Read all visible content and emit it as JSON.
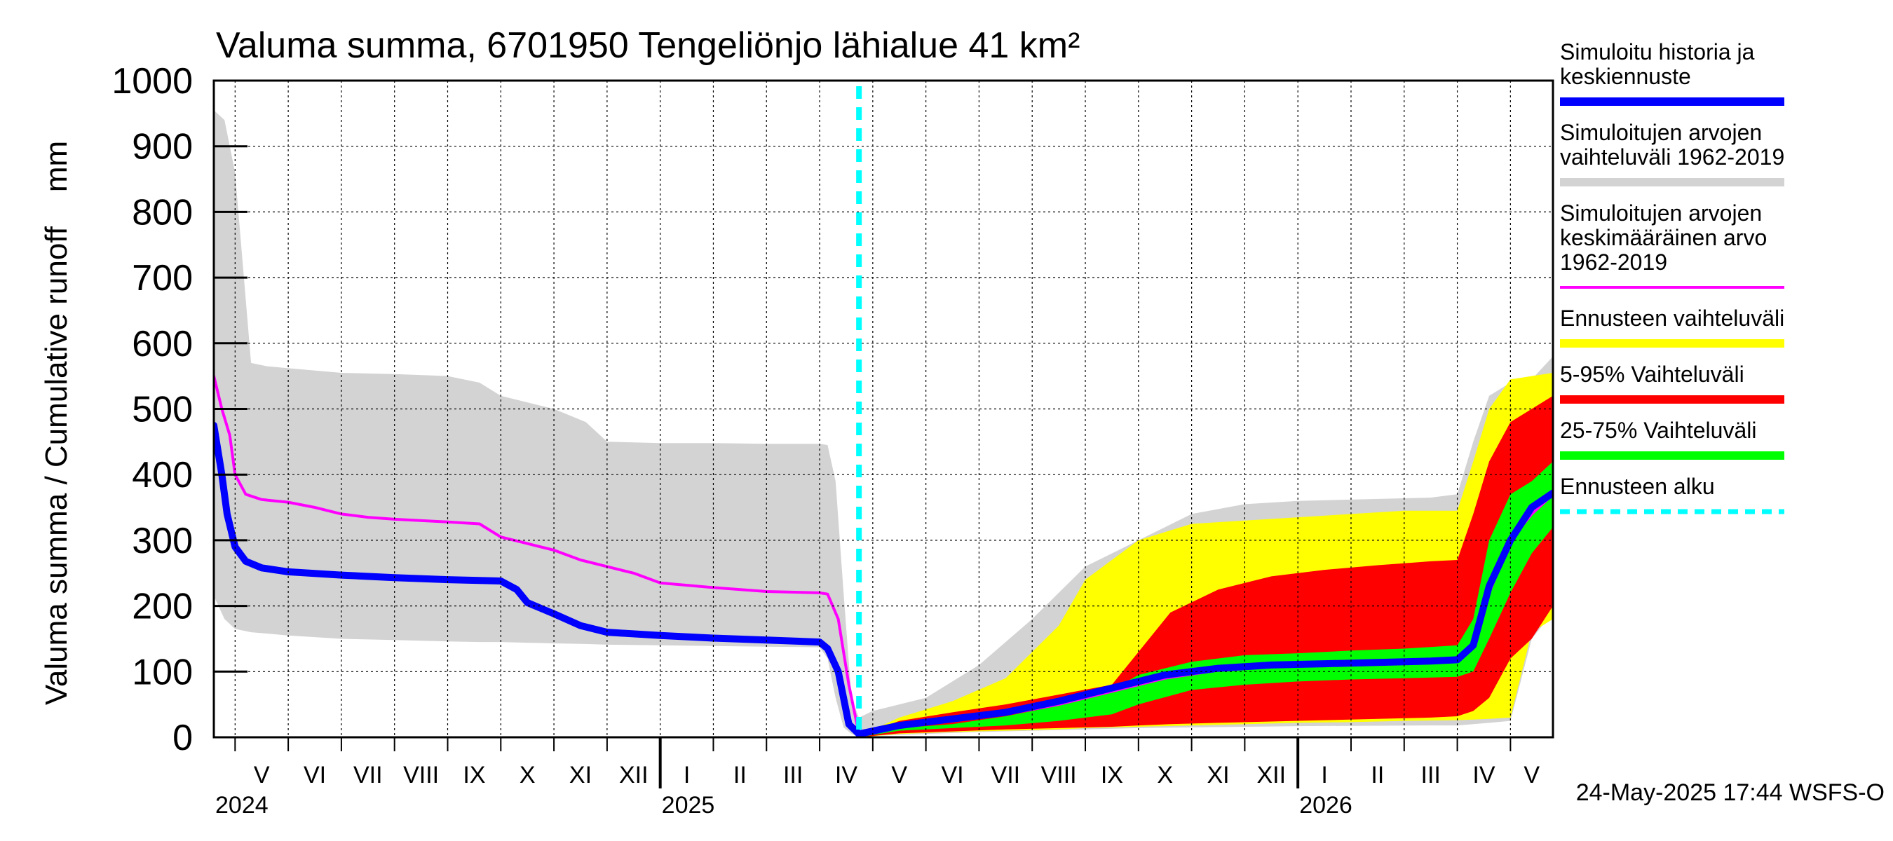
{
  "chart_data": {
    "type": "area",
    "title": "Valuma summa, 6701950 Tengeliönjo lähialue 41 km²",
    "ylabel": "Valuma summa / Cumulative runoff    mm",
    "ylim": [
      0,
      1000
    ],
    "yticks": [
      "0",
      "100",
      "200",
      "300",
      "400",
      "500",
      "600",
      "700",
      "800",
      "900",
      "1000"
    ],
    "x_start_month": 4.6,
    "x_end_month": 29.8,
    "forecast_start_month": 16.74,
    "months": [
      "V",
      "VI",
      "VII",
      "VIII",
      "IX",
      "X",
      "XI",
      "XII",
      "I",
      "II",
      "III",
      "IV",
      "V",
      "VI",
      "VII",
      "VIII",
      "IX",
      "X",
      "XI",
      "XII",
      "I",
      "II",
      "III",
      "IV",
      "V"
    ],
    "years": [
      "2024",
      "2025",
      "2026"
    ],
    "timestamp": "24-May-2025 17:44 WSFS-O",
    "legend": [
      {
        "label": "Simuloitu historia ja keskiennuste",
        "lines": [
          "Simuloitu historia ja",
          "keskiennuste"
        ],
        "color": "#0000ff",
        "style": "solid"
      },
      {
        "label": "Simuloitujen arvojen vaihteluväli 1962-2019",
        "lines": [
          "Simuloitujen arvojen",
          "vaihteluväli 1962-2019"
        ],
        "color": "#d3d3d3",
        "style": "solid"
      },
      {
        "label": "Simuloitujen arvojen keskimääräinen arvo 1962-2019",
        "lines": [
          "Simuloitujen arvojen",
          "keskimääräinen arvo",
          "   1962-2019"
        ],
        "color": "#ff00ff",
        "style": "solid"
      },
      {
        "label": "Ennusteen vaihteluväli",
        "lines": [
          "Ennusteen vaihteluväli"
        ],
        "color": "#ffff00",
        "style": "solid"
      },
      {
        "label": "5-95% Vaihteluväli",
        "lines": [
          "5-95% Vaihteluväli"
        ],
        "color": "#ff0000",
        "style": "solid"
      },
      {
        "label": "25-75% Vaihteluväli",
        "lines": [
          "25-75% Vaihteluväli"
        ],
        "color": "#00ff00",
        "style": "solid"
      },
      {
        "label": "Ennusteen alku",
        "lines": [
          "Ennusteen alku"
        ],
        "color": "#00ffff",
        "style": "dashed"
      }
    ],
    "series": [
      {
        "name": "Simuloitujen arvojen vaihteluväli 1962-2019",
        "kind": "band",
        "color": "#d3d3d3",
        "x": [
          4.6,
          4.8,
          5.0,
          5.3,
          5.6,
          6.0,
          7.0,
          8.0,
          9.0,
          9.6,
          10.0,
          11.0,
          11.6,
          12.0,
          13.0,
          14.0,
          15.0,
          16.0,
          16.15,
          16.3,
          16.45,
          16.6,
          16.74,
          17.0,
          18.0,
          19.0,
          20.0,
          21.0,
          22.0,
          23.0,
          24.0,
          25.0,
          27.5,
          28.0,
          28.3,
          28.6,
          29.0,
          29.4,
          29.8
        ],
        "upper": [
          955,
          940,
          860,
          570,
          565,
          562,
          555,
          553,
          550,
          540,
          520,
          500,
          480,
          450,
          448,
          448,
          447,
          447,
          445,
          390,
          220,
          60,
          30,
          40,
          60,
          110,
          180,
          260,
          300,
          340,
          355,
          360,
          365,
          370,
          450,
          520,
          540,
          545,
          580
        ],
        "lower": [
          215,
          180,
          165,
          160,
          158,
          155,
          150,
          148,
          146,
          145,
          145,
          143,
          142,
          141,
          140,
          139,
          138,
          137,
          120,
          60,
          15,
          5,
          0,
          2,
          5,
          8,
          10,
          12,
          14,
          15,
          16,
          17,
          18,
          18,
          20,
          22,
          25,
          150,
          190
        ]
      },
      {
        "name": "Ennusteen vaihteluväli",
        "kind": "band",
        "color": "#ffff00",
        "x": [
          16.74,
          17.5,
          18.5,
          19.5,
          20.5,
          21.0,
          21.5,
          22.0,
          23.0,
          24.0,
          25.0,
          26.0,
          27.0,
          28.0,
          28.3,
          28.6,
          29.0,
          29.4,
          29.8
        ],
        "upper": [
          2,
          30,
          55,
          90,
          170,
          240,
          270,
          300,
          325,
          330,
          335,
          340,
          345,
          345,
          420,
          500,
          545,
          550,
          555
        ],
        "lower": [
          0,
          5,
          8,
          10,
          12,
          14,
          15,
          16,
          18,
          20,
          22,
          23,
          25,
          26,
          27,
          28,
          30,
          160,
          180
        ]
      },
      {
        "name": "5-95% Vaihteluväli",
        "kind": "band",
        "color": "#ff0000",
        "x": [
          16.74,
          17.5,
          18.5,
          19.5,
          20.5,
          21.5,
          22.0,
          22.6,
          23.5,
          24.5,
          25.5,
          26.5,
          27.5,
          28.0,
          28.3,
          28.6,
          29.0,
          29.4,
          29.8
        ],
        "upper": [
          2,
          25,
          38,
          50,
          65,
          80,
          130,
          190,
          225,
          245,
          255,
          262,
          268,
          270,
          340,
          420,
          480,
          500,
          520
        ],
        "lower": [
          0,
          6,
          9,
          12,
          14,
          16,
          18,
          20,
          22,
          24,
          26,
          28,
          30,
          32,
          40,
          60,
          120,
          150,
          200
        ]
      },
      {
        "name": "25-75% Vaihteluväli",
        "kind": "band",
        "color": "#00ff00",
        "x": [
          16.74,
          17.5,
          18.5,
          19.5,
          20.5,
          21.5,
          22.0,
          23.0,
          24.0,
          25.0,
          26.0,
          27.0,
          28.0,
          28.3,
          28.6,
          29.0,
          29.4,
          29.8
        ],
        "upper": [
          2,
          14,
          20,
          32,
          48,
          72,
          95,
          115,
          125,
          128,
          132,
          135,
          140,
          180,
          300,
          370,
          390,
          420
        ],
        "lower": [
          0,
          10,
          14,
          18,
          25,
          35,
          50,
          72,
          80,
          85,
          88,
          90,
          92,
          100,
          150,
          220,
          280,
          320
        ]
      },
      {
        "name": "Simuloitujen arvojen keskimääräinen arvo 1962-2019",
        "kind": "line",
        "color": "#ff00ff",
        "x": [
          4.6,
          4.75,
          4.9,
          5.0,
          5.2,
          5.5,
          6.0,
          6.5,
          7.0,
          7.5,
          8.0,
          9.0,
          9.6,
          10.0,
          10.5,
          11.0,
          11.5,
          12.0,
          12.5,
          13.0,
          14.0,
          15.0,
          16.0,
          16.15,
          16.35,
          16.55,
          16.74,
          17.5,
          18.5,
          19.5,
          20.5,
          21.5,
          22.5,
          23.5,
          24.5,
          25.5,
          26.5,
          27.5,
          28.0,
          28.3,
          28.6,
          29.0,
          29.4,
          29.8
        ],
        "values": [
          550,
          500,
          460,
          400,
          370,
          362,
          358,
          350,
          340,
          335,
          332,
          328,
          325,
          305,
          295,
          285,
          270,
          260,
          250,
          235,
          228,
          222,
          220,
          218,
          180,
          80,
          5,
          15,
          25,
          35,
          50,
          70,
          90,
          102,
          108,
          110,
          112,
          115,
          118,
          140,
          220,
          300,
          340,
          370
        ]
      },
      {
        "name": "Simuloitu historia ja keskiennuste",
        "kind": "line",
        "color": "#0000ff",
        "x": [
          4.6,
          4.75,
          4.85,
          5.0,
          5.2,
          5.5,
          6.0,
          7.0,
          8.0,
          9.0,
          10.0,
          10.3,
          10.5,
          11.0,
          11.5,
          12.0,
          13.0,
          14.0,
          15.0,
          16.0,
          16.15,
          16.35,
          16.55,
          16.74,
          17.5,
          18.5,
          19.5,
          20.5,
          21.5,
          22.5,
          23.5,
          24.5,
          25.5,
          26.5,
          27.5,
          28.0,
          28.3,
          28.6,
          29.0,
          29.4,
          29.8
        ],
        "values": [
          475,
          400,
          340,
          290,
          268,
          258,
          252,
          247,
          243,
          240,
          238,
          225,
          205,
          188,
          170,
          160,
          155,
          151,
          148,
          145,
          135,
          100,
          20,
          5,
          18,
          28,
          38,
          55,
          75,
          95,
          105,
          110,
          112,
          114,
          116,
          118,
          140,
          230,
          300,
          350,
          372
        ]
      }
    ]
  }
}
